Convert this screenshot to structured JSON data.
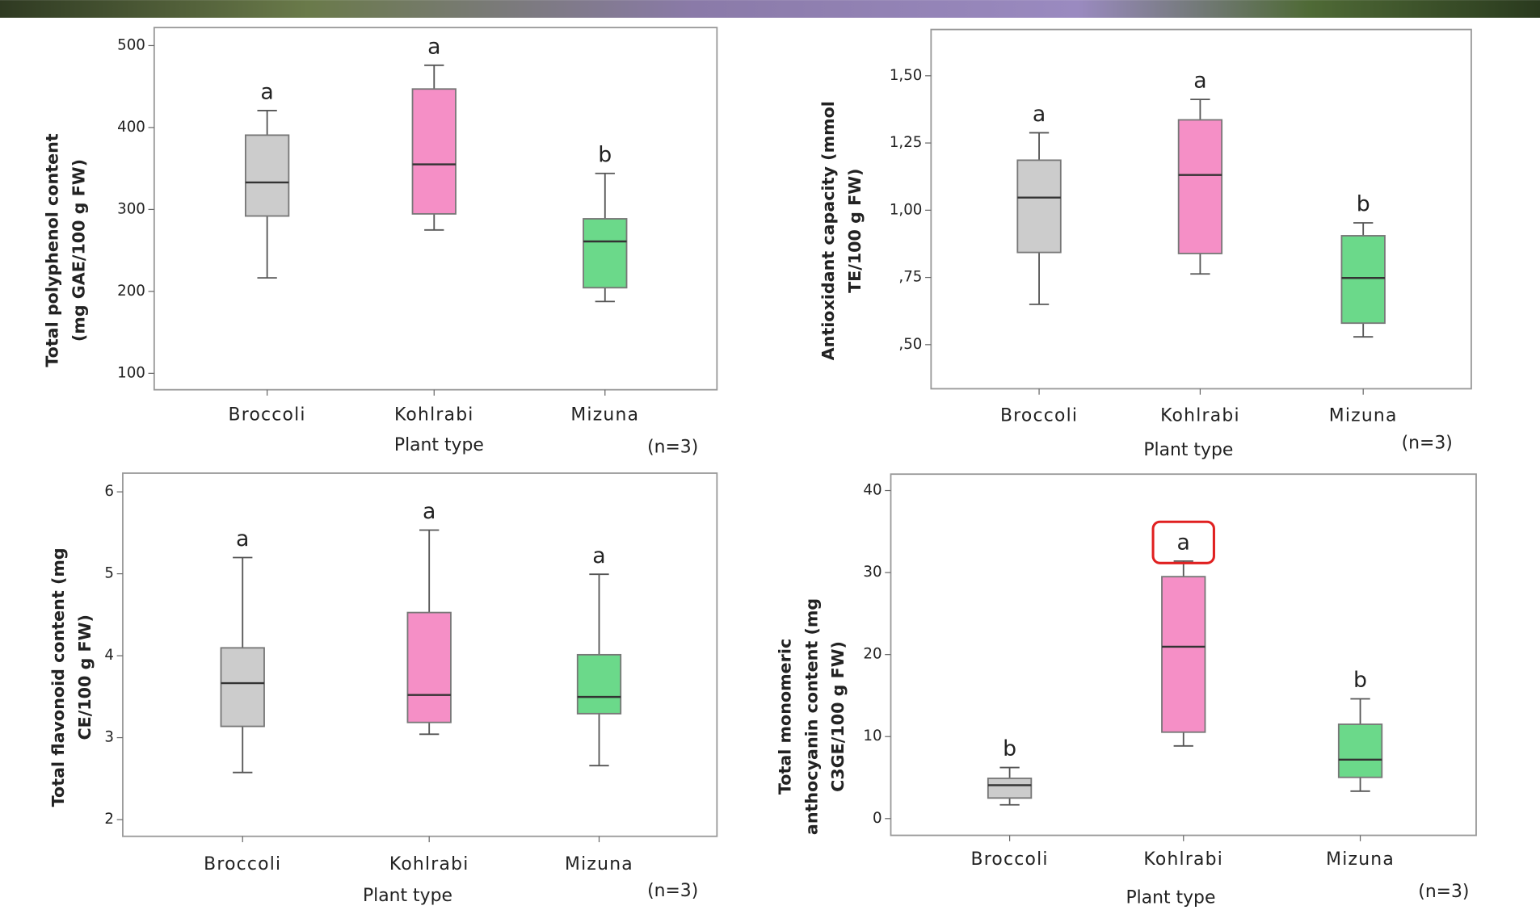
{
  "chart_data": [
    {
      "type": "box",
      "y_label": [
        "Total polyphenol content",
        "(mg GAE/100 g FW)"
      ],
      "x_label": "Plant type",
      "note": "(n=3)",
      "categories": [
        "Broccoli",
        "Kohlrabi",
        "Mizuna"
      ],
      "colors": [
        "#cccccc",
        "#f58fc6",
        "#6bd98a"
      ],
      "min": [
        216.5,
        275,
        187.7
      ],
      "q1": [
        292,
        294.6,
        204.5
      ],
      "median": [
        333,
        355,
        261
      ],
      "q3": [
        390.7,
        447,
        288.6
      ],
      "max": [
        420.7,
        476,
        344
      ],
      "letters": [
        "a",
        "a",
        "b"
      ],
      "ylim": [
        80,
        522
      ],
      "yticks": [
        100,
        200,
        300,
        400,
        500
      ],
      "grid": false
    },
    {
      "type": "box",
      "y_label": [
        "Antioxidant capacity (mmol",
        "TE/100 g FW)"
      ],
      "x_label": "Plant type",
      "note": "(n=3)",
      "categories": [
        "Broccoli",
        "Kohlrabi",
        "Mizuna"
      ],
      "colors": [
        "#cccccc",
        "#f58fc6",
        "#6bd98a"
      ],
      "min": [
        0.65,
        0.763,
        0.529
      ],
      "q1": [
        0.843,
        0.839,
        0.58
      ],
      "median": [
        1.047,
        1.131,
        0.748
      ],
      "q3": [
        1.186,
        1.336,
        0.905
      ],
      "max": [
        1.288,
        1.412,
        0.953
      ],
      "letters": [
        "a",
        "a",
        "b"
      ],
      "ylim": [
        0.336,
        1.672
      ],
      "yticks": [
        {
          "value": 0.5,
          "label": ",50"
        },
        {
          "value": 0.75,
          "label": ",75"
        },
        {
          "value": 1.0,
          "label": "1,00"
        },
        {
          "value": 1.25,
          "label": "1,25"
        },
        {
          "value": 1.5,
          "label": "1,50"
        }
      ],
      "grid": false
    },
    {
      "type": "box",
      "y_label": [
        "Total flavonoid content (mg",
        "CE/100 g FW)"
      ],
      "x_label": "Plant type",
      "note": "(n=3)",
      "categories": [
        "Broccoli",
        "Kohlrabi",
        "Mizuna"
      ],
      "colors": [
        "#cccccc",
        "#f58fc6",
        "#6bd98a"
      ],
      "min": [
        2.575,
        3.042,
        2.659
      ],
      "q1": [
        3.138,
        3.186,
        3.293
      ],
      "median": [
        3.665,
        3.521,
        3.497
      ],
      "q3": [
        4.096,
        4.527,
        4.012
      ],
      "max": [
        5.198,
        5.533,
        4.994
      ],
      "letters": [
        "a",
        "a",
        "a"
      ],
      "ylim": [
        1.796,
        6.228
      ],
      "yticks": [
        2,
        3,
        4,
        5,
        6
      ],
      "grid": false
    },
    {
      "type": "box",
      "y_label": [
        "Total monomeric",
        "anthocyanin content (mg",
        "C3GE/100 g FW)"
      ],
      "x_label": "Plant type",
      "note": "(n=3)",
      "categories": [
        "Broccoli",
        "Kohlrabi",
        "Mizuna"
      ],
      "colors": [
        "#cccccc",
        "#f58fc6",
        "#6bd98a"
      ],
      "min": [
        1.68,
        8.86,
        3.35
      ],
      "q1": [
        2.51,
        10.54,
        5.03
      ],
      "median": [
        4.07,
        20.96,
        7.19
      ],
      "q3": [
        4.91,
        29.5,
        11.5
      ],
      "max": [
        6.23,
        31.4,
        14.6
      ],
      "letters": [
        "b",
        "a",
        "b"
      ],
      "highlight_index": 1,
      "ylim": [
        -2.04,
        42
      ],
      "yticks": [
        0,
        10,
        20,
        30,
        40
      ],
      "grid": false
    }
  ]
}
